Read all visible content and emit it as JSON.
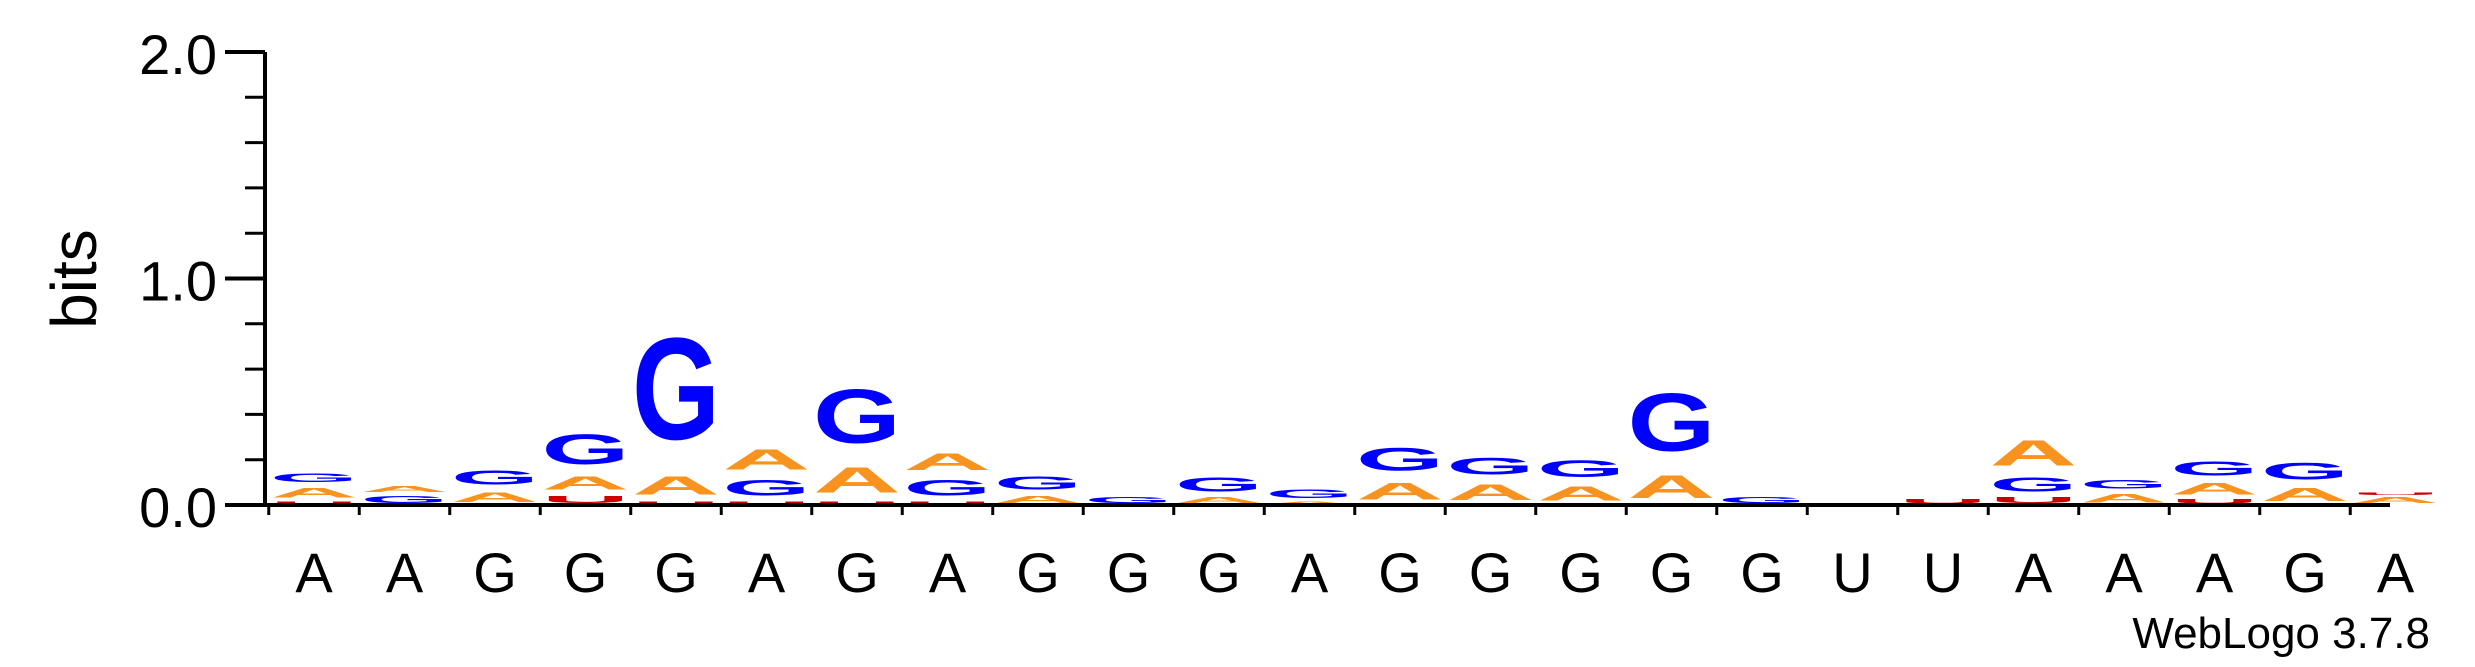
{
  "chart_data": {
    "type": "sequence-logo",
    "ylabel": "bits",
    "ylim": [
      0,
      2.0
    ],
    "yticks": [
      {
        "value": 0.0,
        "label": "0.0"
      },
      {
        "value": 1.0,
        "label": "1.0"
      },
      {
        "value": 2.0,
        "label": "2.0"
      }
    ],
    "x_labels": [
      "A",
      "A",
      "G",
      "G",
      "G",
      "A",
      "G",
      "A",
      "G",
      "G",
      "G",
      "A",
      "G",
      "G",
      "G",
      "G",
      "G",
      "U",
      "U",
      "A",
      "A",
      "A",
      "G",
      "A"
    ],
    "colors": {
      "A": "#f7931e",
      "G": "#0000ff",
      "C": "#0000ff",
      "U": "#cc0000"
    },
    "positions": [
      {
        "letters": [
          {
            "base": "U",
            "bits": 0.02
          },
          {
            "base": "A",
            "bits": 0.07
          },
          {
            "base": "G",
            "bits": 0.06
          }
        ]
      },
      {
        "letters": [
          {
            "base": "G",
            "bits": 0.05
          },
          {
            "base": "A",
            "bits": 0.04
          }
        ]
      },
      {
        "letters": [
          {
            "base": "A",
            "bits": 0.07
          },
          {
            "base": "G",
            "bits": 0.1
          }
        ]
      },
      {
        "letters": [
          {
            "base": "U",
            "bits": 0.05
          },
          {
            "base": "A",
            "bits": 0.09
          },
          {
            "base": "G",
            "bits": 0.21
          }
        ]
      },
      {
        "letters": [
          {
            "base": "U",
            "bits": 0.02
          },
          {
            "base": "A",
            "bits": 0.13
          },
          {
            "base": "G",
            "bits": 0.72
          }
        ]
      },
      {
        "letters": [
          {
            "base": "U",
            "bits": 0.02
          },
          {
            "base": "G",
            "bits": 0.11
          },
          {
            "base": "A",
            "bits": 0.14
          }
        ]
      },
      {
        "letters": [
          {
            "base": "U",
            "bits": 0.02
          },
          {
            "base": "A",
            "bits": 0.18
          },
          {
            "base": "G",
            "bits": 0.38
          }
        ]
      },
      {
        "letters": [
          {
            "base": "U",
            "bits": 0.02
          },
          {
            "base": "G",
            "bits": 0.11
          },
          {
            "base": "A",
            "bits": 0.12
          }
        ]
      },
      {
        "letters": [
          {
            "base": "A",
            "bits": 0.05
          },
          {
            "base": "G",
            "bits": 0.09
          }
        ]
      },
      {
        "letters": [
          {
            "base": "G",
            "bits": 0.04
          }
        ]
      },
      {
        "letters": [
          {
            "base": "A",
            "bits": 0.04
          },
          {
            "base": "G",
            "bits": 0.1
          }
        ]
      },
      {
        "letters": [
          {
            "base": "A",
            "bits": 0.02
          },
          {
            "base": "G",
            "bits": 0.06
          }
        ]
      },
      {
        "letters": [
          {
            "base": "A",
            "bits": 0.12
          },
          {
            "base": "G",
            "bits": 0.16
          }
        ]
      },
      {
        "letters": [
          {
            "base": "A",
            "bits": 0.11
          },
          {
            "base": "G",
            "bits": 0.12
          }
        ]
      },
      {
        "letters": [
          {
            "base": "A",
            "bits": 0.1
          },
          {
            "base": "G",
            "bits": 0.12
          }
        ]
      },
      {
        "letters": [
          {
            "base": "A",
            "bits": 0.16
          },
          {
            "base": "G",
            "bits": 0.41
          }
        ]
      },
      {
        "letters": [
          {
            "base": "G",
            "bits": 0.04
          }
        ]
      },
      {
        "letters": []
      },
      {
        "letters": [
          {
            "base": "U",
            "bits": 0.03
          }
        ]
      },
      {
        "letters": [
          {
            "base": "U",
            "bits": 0.04
          },
          {
            "base": "G",
            "bits": 0.1
          },
          {
            "base": "A",
            "bits": 0.18
          }
        ]
      },
      {
        "letters": [
          {
            "base": "A",
            "bits": 0.06
          },
          {
            "base": "G",
            "bits": 0.06
          }
        ]
      },
      {
        "letters": [
          {
            "base": "U",
            "bits": 0.03
          },
          {
            "base": "A",
            "bits": 0.08
          },
          {
            "base": "G",
            "bits": 0.1
          }
        ]
      },
      {
        "letters": [
          {
            "base": "A",
            "bits": 0.09
          },
          {
            "base": "G",
            "bits": 0.12
          }
        ]
      },
      {
        "letters": [
          {
            "base": "A",
            "bits": 0.04
          },
          {
            "base": "U",
            "bits": 0.02
          }
        ]
      }
    ]
  },
  "footer": {
    "credit": "WebLogo 3.7.8"
  }
}
